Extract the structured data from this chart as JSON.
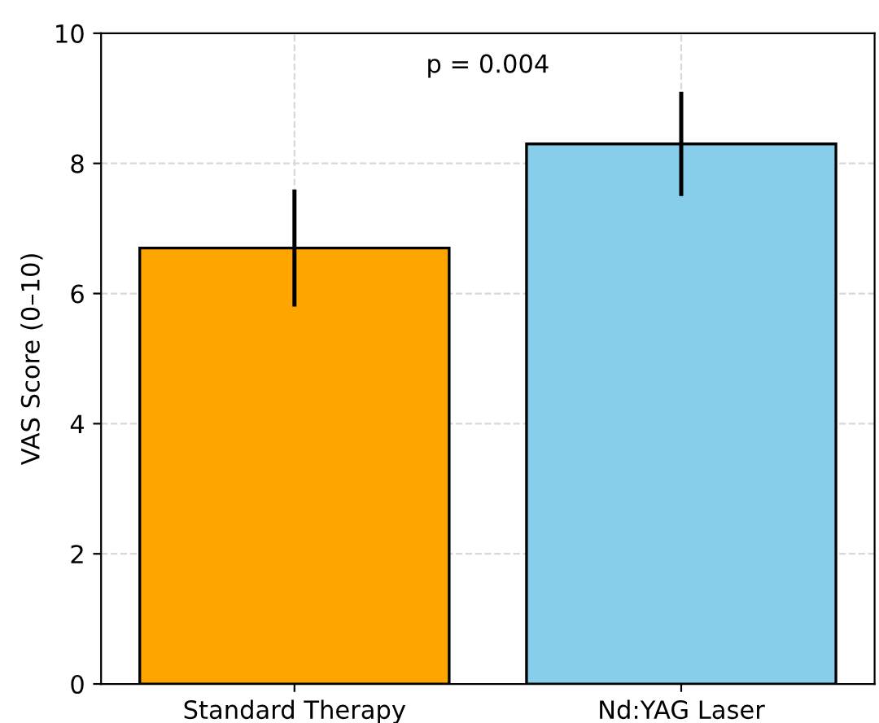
{
  "chart_data": {
    "type": "bar",
    "ylabel": "VAS Score (0–10)",
    "categories": [
      "Standard Therapy",
      "Nd:YAG Laser"
    ],
    "values": [
      6.7,
      8.3
    ],
    "errors": [
      0.9,
      0.8
    ],
    "colors": [
      "#ffa500",
      "#87ceeb"
    ],
    "ylim": [
      0,
      10
    ],
    "yticks": [
      0,
      2,
      4,
      6,
      8,
      10
    ],
    "grid": true,
    "annotations": [
      "p = 0.004"
    ]
  }
}
